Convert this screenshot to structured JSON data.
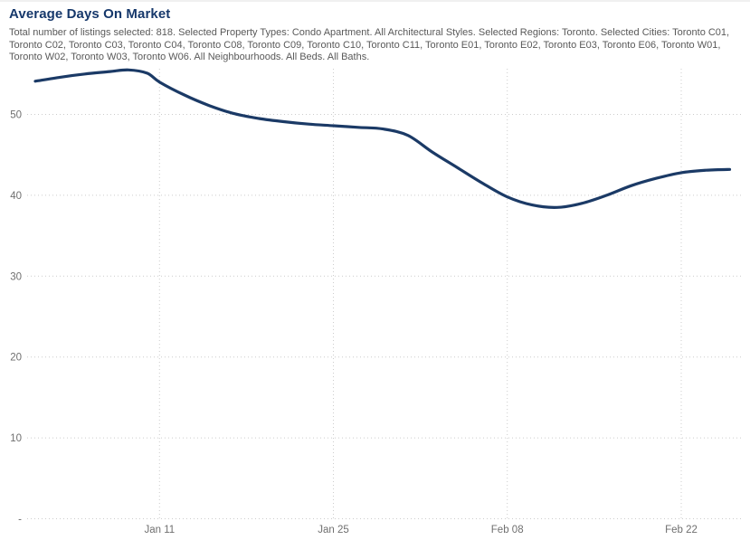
{
  "header": {
    "title": "Average Days On Market",
    "subtitle": "Total number of listings selected: 818. Selected Property Types: Condo Apartment. All Architectural Styles. Selected Regions: Toronto. Selected Cities: Toronto C01, Toronto C02, Toronto C03, Toronto C04, Toronto C08, Toronto C09, Toronto C10, Toronto C11, Toronto E01, Toronto E02, Toronto E03, Toronto E06, Toronto W01, Toronto W02, Toronto W03, Toronto W06. All Neighbourhoods. All Beds. All Baths."
  },
  "colors": {
    "title": "#16386b",
    "subtitle": "#595959",
    "line": "#1b3a66",
    "grid": "#cccccc",
    "axis_label": "#6f6f6f"
  },
  "chart_data": {
    "type": "line",
    "title": "Average Days On Market",
    "xlabel": "",
    "ylabel": "",
    "legend": "none",
    "grid": "dotted",
    "ylim": [
      0,
      57
    ],
    "x_period": {
      "start": "Jan 1",
      "end": "Feb 26"
    },
    "yaxis": {
      "ticks": [
        {
          "label": "50",
          "value": 50
        },
        {
          "label": "40",
          "value": 40
        },
        {
          "label": "30",
          "value": 30
        },
        {
          "label": "20",
          "value": 20
        },
        {
          "label": "10",
          "value": 10
        },
        {
          "label": "-",
          "value": 0
        }
      ]
    },
    "xaxis": {
      "ticks": [
        {
          "label": "Jan 11",
          "day": 11
        },
        {
          "label": "Jan 25",
          "day": 25
        },
        {
          "label": "Feb 08",
          "day": 39
        },
        {
          "label": "Feb 22",
          "day": 53
        }
      ]
    },
    "series": [
      {
        "name": "Average Days On Market",
        "points": [
          {
            "date": "Jan 1",
            "day": 1,
            "value": 54.1
          },
          {
            "date": "Jan 3",
            "day": 3,
            "value": 54.6
          },
          {
            "date": "Jan 5",
            "day": 5,
            "value": 55.0
          },
          {
            "date": "Jan 7",
            "day": 7,
            "value": 55.3
          },
          {
            "date": "Jan 8",
            "day": 8.5,
            "value": 55.5
          },
          {
            "date": "Jan 10",
            "day": 10,
            "value": 55.1
          },
          {
            "date": "Jan 11",
            "day": 11,
            "value": 54.0
          },
          {
            "date": "Jan 13",
            "day": 13,
            "value": 52.4
          },
          {
            "date": "Jan 15",
            "day": 15,
            "value": 51.1
          },
          {
            "date": "Jan 17",
            "day": 17,
            "value": 50.1
          },
          {
            "date": "Jan 19",
            "day": 19,
            "value": 49.5
          },
          {
            "date": "Jan 21",
            "day": 21,
            "value": 49.1
          },
          {
            "date": "Jan 23",
            "day": 23,
            "value": 48.8
          },
          {
            "date": "Jan 25",
            "day": 25,
            "value": 48.6
          },
          {
            "date": "Jan 27",
            "day": 27,
            "value": 48.4
          },
          {
            "date": "Jan 29",
            "day": 29,
            "value": 48.2
          },
          {
            "date": "Jan 31",
            "day": 31,
            "value": 47.4
          },
          {
            "date": "Feb 2",
            "day": 33,
            "value": 45.3
          },
          {
            "date": "Feb 4",
            "day": 35,
            "value": 43.4
          },
          {
            "date": "Feb 6",
            "day": 37,
            "value": 41.5
          },
          {
            "date": "Feb 8",
            "day": 39,
            "value": 39.8
          },
          {
            "date": "Feb 10",
            "day": 41,
            "value": 38.8
          },
          {
            "date": "Feb 12",
            "day": 43,
            "value": 38.5
          },
          {
            "date": "Feb 14",
            "day": 45,
            "value": 39.0
          },
          {
            "date": "Feb 16",
            "day": 47,
            "value": 40.0
          },
          {
            "date": "Feb 18",
            "day": 49,
            "value": 41.2
          },
          {
            "date": "Feb 20",
            "day": 51,
            "value": 42.1
          },
          {
            "date": "Feb 22",
            "day": 53,
            "value": 42.8
          },
          {
            "date": "Feb 24",
            "day": 55,
            "value": 43.1
          },
          {
            "date": "Feb 26",
            "day": 56.9,
            "value": 43.2
          }
        ]
      }
    ]
  }
}
